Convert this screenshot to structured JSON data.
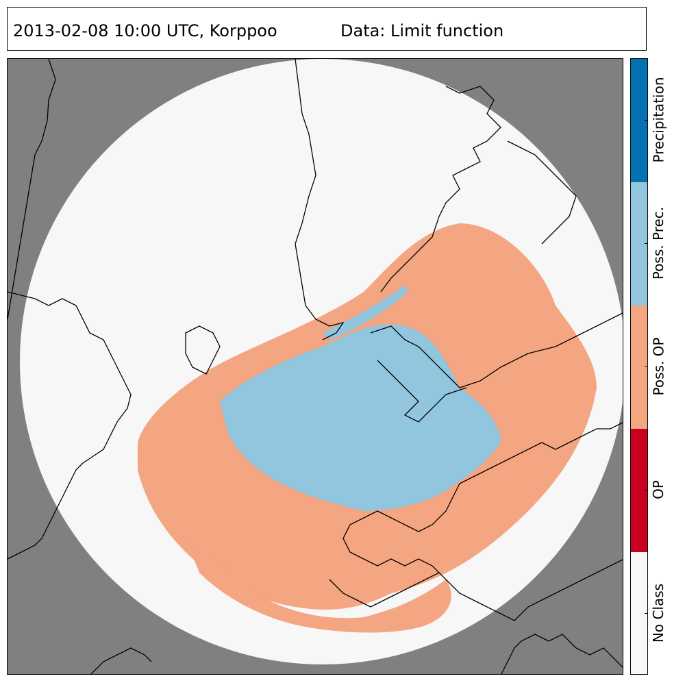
{
  "header": {
    "title": "2013-02-08 10:00 UTC, Korppoo",
    "data_label": "Data: Limit function"
  },
  "colors": {
    "background": "#808080",
    "radar_disc": "#f7f7f7",
    "coastline": "#000000",
    "no_class": "#f7f7f7",
    "op": "#ca0020",
    "poss_op": "#f4a582",
    "poss_prec": "#92c5de",
    "precipitation": "#0571b0"
  },
  "legend": {
    "classes": [
      {
        "label": "Precipitation",
        "color": "#0571b0"
      },
      {
        "label": "Poss. Prec.",
        "color": "#92c5de"
      },
      {
        "label": "Poss. OP",
        "color": "#f4a582"
      },
      {
        "label": "OP",
        "color": "#ca0020"
      },
      {
        "label": "No Class",
        "color": "#f7f7f7"
      }
    ]
  }
}
